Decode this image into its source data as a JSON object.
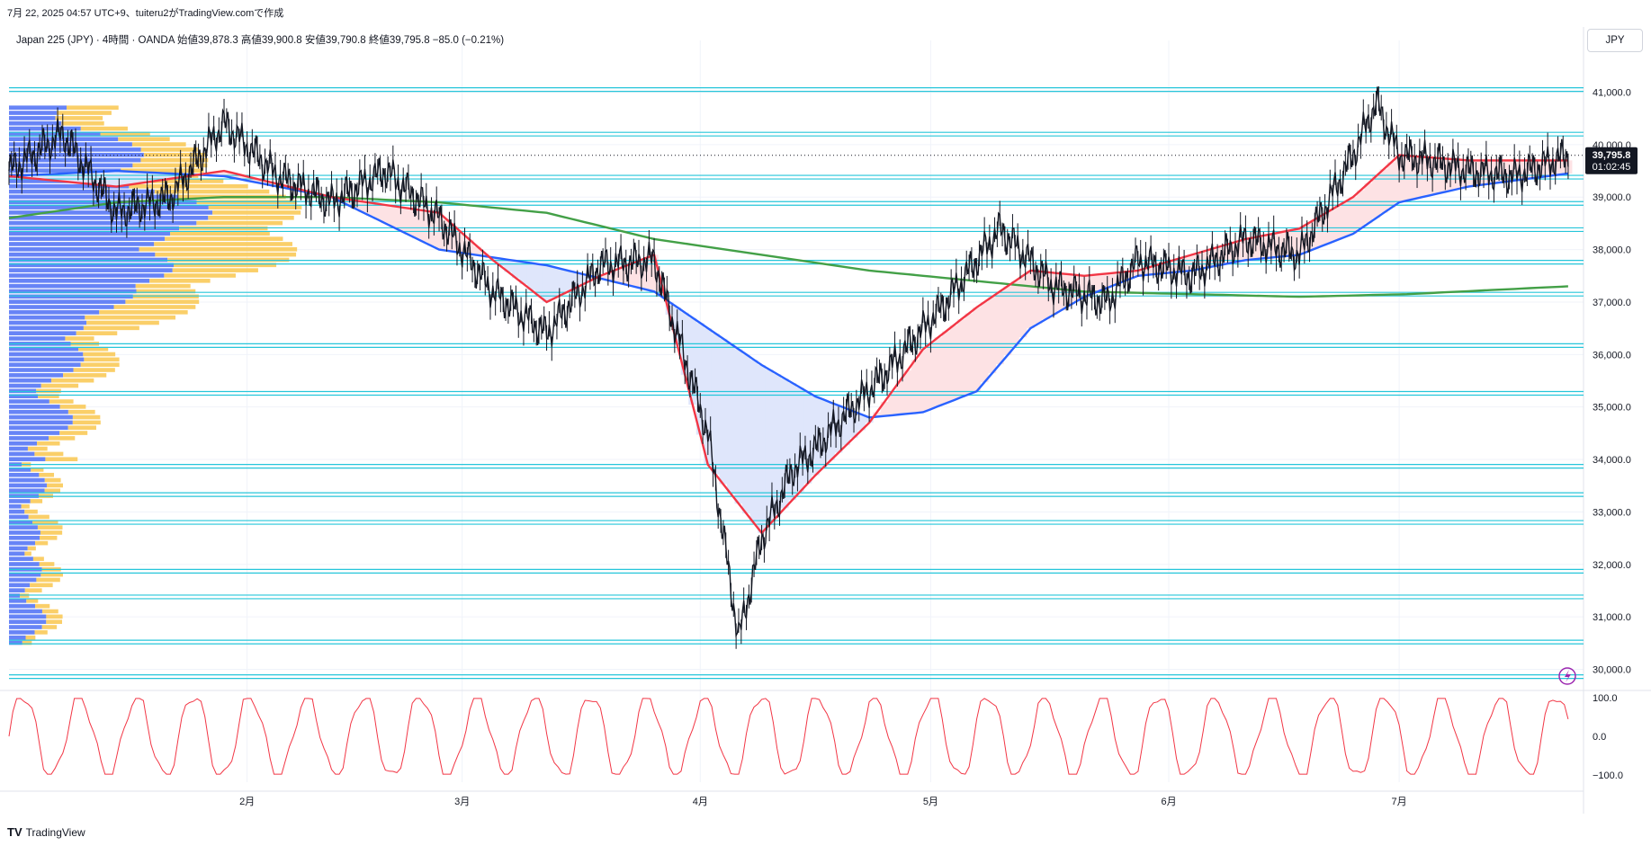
{
  "header": {
    "caption": "7月 22, 2025 04:57 UTC+9、tuiteru2がTradingView.comで作成",
    "symbol_line": "Japan 225 (JPY) · 4時間 · OANDA  始値39,878.3  高値39,900.8  安値39,790.8  終値39,795.8  −85.0 (−0.21%)"
  },
  "currency_button": "JPY",
  "footer": {
    "logo": "TV",
    "brand": "TradingView"
  },
  "colors": {
    "bg": "#ffffff",
    "grid": "#f0f3fa",
    "level_line": "#26c6da",
    "price_line": "#131722",
    "ma_fast": "#f23645",
    "ma_mid": "#2962ff",
    "ma_slow": "#43a047",
    "cloud_up": "#fde2e4",
    "cloud_down": "#dfe6fb",
    "vp_up": "#f9c74f",
    "vp_down": "#4c6ef5",
    "osc": "#f23645",
    "accent": "#9c27b0"
  },
  "chart_data": {
    "type": "line",
    "price_axis": {
      "ticks": [
        41000,
        40000,
        39000,
        38000,
        37000,
        36000,
        35000,
        34000,
        33000,
        32000,
        31000,
        30000
      ],
      "tick_labels": [
        "41,000.0",
        "40,000.0",
        "39,000.0",
        "38,000.0",
        "37,000.0",
        "36,000.0",
        "35,000.0",
        "34,000.0",
        "33,000.0",
        "32,000.0",
        "31,000.0",
        "30,000.0"
      ],
      "ylim": [
        29700,
        41300
      ]
    },
    "time_axis": {
      "labels": [
        "2月",
        "3月",
        "4月",
        "5月",
        "6月",
        "7月"
      ],
      "x_days": [
        31,
        59,
        90,
        120,
        151,
        181
      ]
    },
    "current_price": {
      "value": 39795.8,
      "label": "39,795.8",
      "countdown": "01:02:45"
    },
    "horizontal_levels": [
      41050,
      40200,
      39380,
      38880,
      38380,
      37760,
      37150,
      36170,
      35260,
      33870,
      33330,
      32800,
      31870,
      31380,
      30520,
      29860
    ],
    "price_series": {
      "name": "Japan 225",
      "x_days": [
        0,
        7,
        14,
        21,
        28,
        35,
        42,
        49,
        56,
        63,
        70,
        77,
        84,
        91,
        95,
        98,
        102,
        105,
        108,
        115,
        122,
        129,
        136,
        143,
        147,
        154,
        161,
        168,
        175,
        178,
        181,
        185,
        190,
        196,
        203
      ],
      "values": [
        39500,
        40200,
        38700,
        39000,
        40400,
        39400,
        38900,
        39500,
        38600,
        37200,
        36400,
        37700,
        37800,
        34500,
        30600,
        32500,
        33800,
        34200,
        34700,
        35800,
        37000,
        38400,
        37300,
        37000,
        37800,
        37500,
        38200,
        37900,
        39800,
        40800,
        39800,
        39700,
        39500,
        39400,
        39800
      ]
    },
    "ma_fast": {
      "x_days": [
        0,
        14,
        28,
        42,
        56,
        63,
        70,
        77,
        84,
        91,
        98,
        105,
        112,
        119,
        126,
        133,
        140,
        147,
        154,
        161,
        168,
        175,
        181,
        190,
        203
      ],
      "values": [
        39400,
        39200,
        39500,
        39000,
        38700,
        37800,
        37000,
        37500,
        37900,
        33900,
        32600,
        33700,
        34700,
        36100,
        36900,
        37600,
        37500,
        37600,
        37900,
        38200,
        38400,
        39000,
        39800,
        39700,
        39700
      ]
    },
    "ma_mid": {
      "x_days": [
        0,
        14,
        28,
        42,
        56,
        70,
        84,
        98,
        105,
        112,
        119,
        126,
        133,
        140,
        147,
        154,
        161,
        168,
        175,
        181,
        190,
        203
      ],
      "values": [
        39400,
        39500,
        39400,
        39000,
        38000,
        37700,
        37200,
        35800,
        35200,
        34800,
        34900,
        35300,
        36500,
        37100,
        37500,
        37600,
        37800,
        37900,
        38300,
        38900,
        39200,
        39450
      ]
    },
    "ma_slow": {
      "x_days": [
        0,
        14,
        28,
        42,
        56,
        70,
        84,
        98,
        112,
        126,
        140,
        154,
        168,
        182,
        196,
        203
      ],
      "values": [
        38600,
        38900,
        39000,
        39000,
        38900,
        38700,
        38200,
        37900,
        37600,
        37400,
        37200,
        37150,
        37100,
        37150,
        37250,
        37300
      ]
    },
    "oscillator": {
      "name": "",
      "ylim": [
        -100,
        100
      ],
      "tick_labels": [
        "100.0",
        "0.0",
        "−100.0"
      ]
    },
    "volume_profile": {
      "ylim_price": [
        30500,
        40700
      ]
    }
  }
}
